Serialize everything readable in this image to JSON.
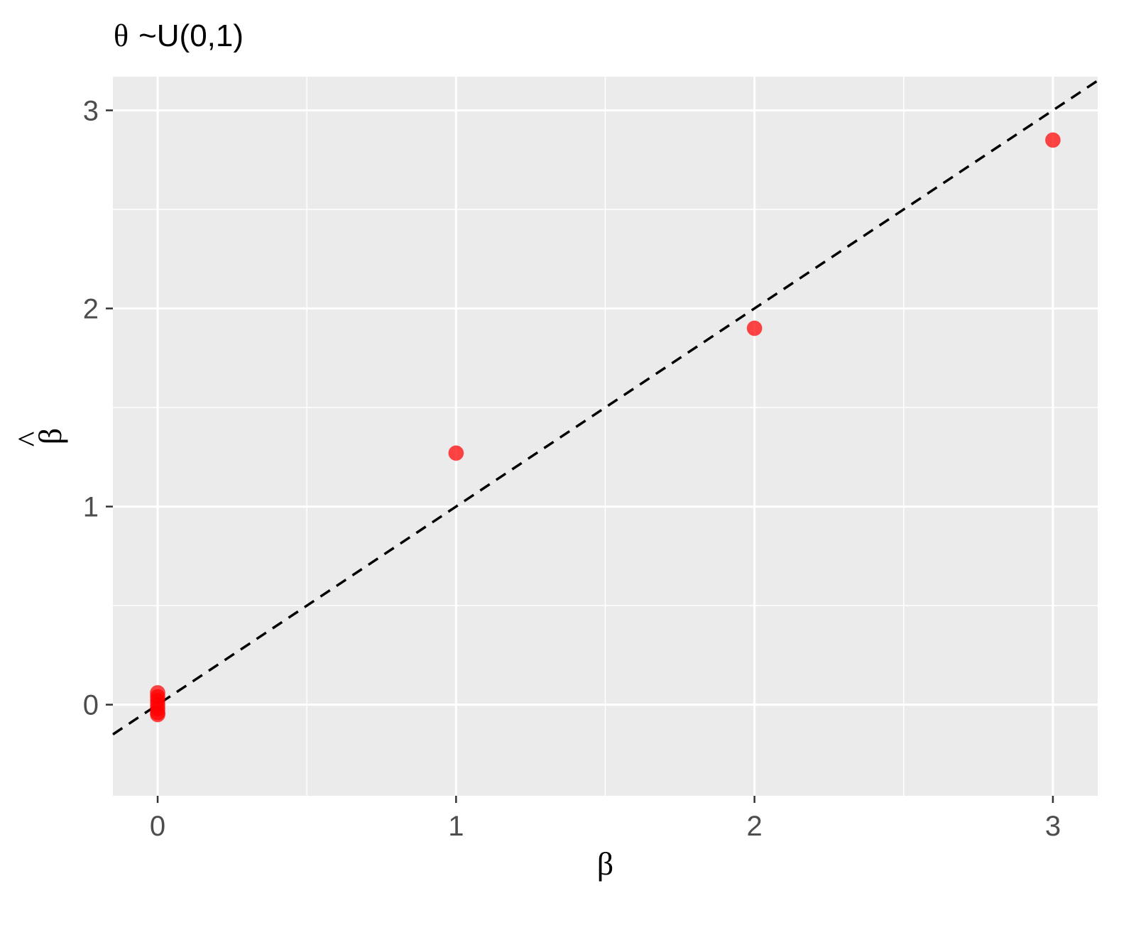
{
  "chart_data": {
    "type": "scatter",
    "title_symbol": "θ",
    "title": "~U(0,1)",
    "xlabel": "β",
    "ylabel": "β",
    "ylabel_hat": "^",
    "xlim": [
      -0.15,
      3.15
    ],
    "ylim": [
      -0.46,
      3.17
    ],
    "x_ticks": [
      0,
      1,
      2,
      3
    ],
    "x_tick_labels": [
      "0",
      "1",
      "2",
      "3"
    ],
    "y_ticks": [
      0,
      1,
      2,
      3
    ],
    "y_tick_labels": [
      "0",
      "1",
      "2",
      "3"
    ],
    "x_minor": [
      0.5,
      1.5,
      2.5
    ],
    "y_minor": [
      0.5,
      1.5,
      2.5
    ],
    "grid": true,
    "reference_line": {
      "intercept": 0,
      "slope": 1,
      "style": "dashed"
    },
    "points": [
      {
        "x": 0,
        "y": 0.06
      },
      {
        "x": 0,
        "y": 0.04
      },
      {
        "x": 0,
        "y": 0.02
      },
      {
        "x": 0,
        "y": 0.0
      },
      {
        "x": 0,
        "y": -0.02
      },
      {
        "x": 0,
        "y": -0.04
      },
      {
        "x": 0,
        "y": -0.05
      },
      {
        "x": 1,
        "y": 1.27
      },
      {
        "x": 2,
        "y": 1.9
      },
      {
        "x": 3,
        "y": 2.85
      }
    ],
    "colors": {
      "panel": "#ebebeb",
      "grid": "#ffffff",
      "point": "#ff0000",
      "line": "#000000"
    }
  }
}
